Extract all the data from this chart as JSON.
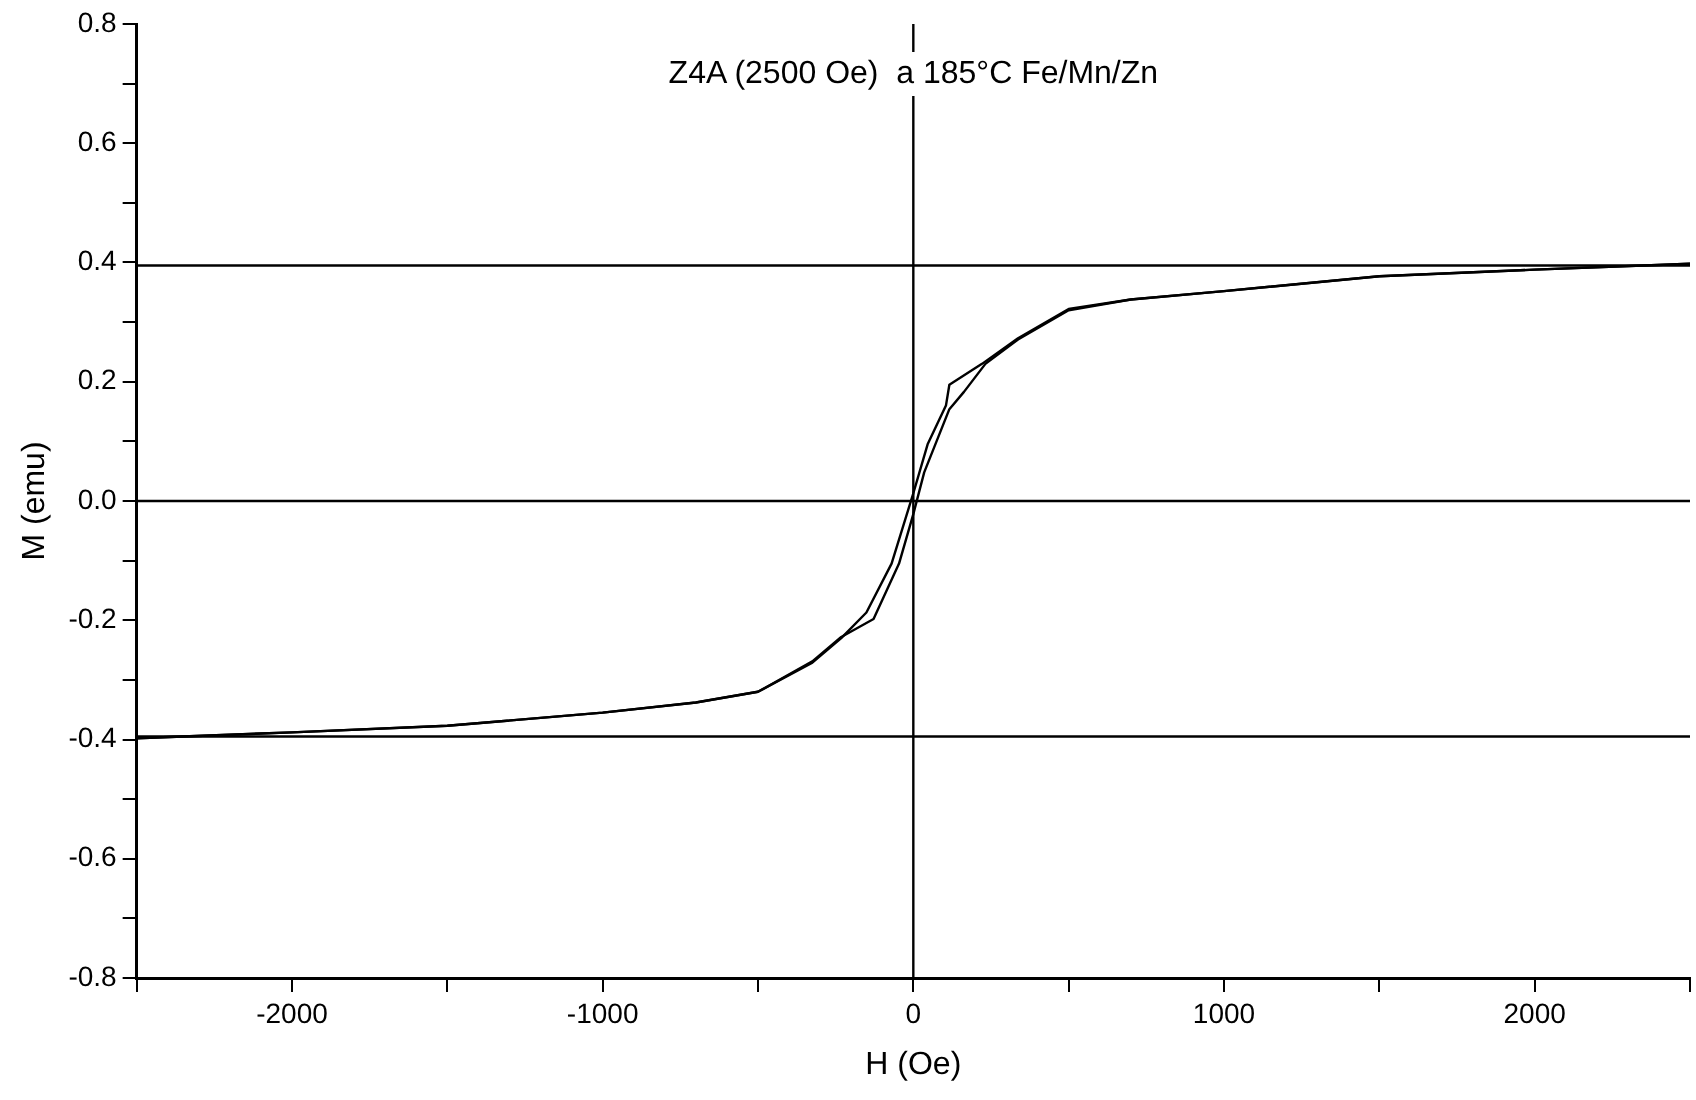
{
  "chart_data": {
    "type": "line",
    "title": "Z4A (2500 Oe)  a 185°C Fe/Mn/Zn",
    "xlabel": "H (Oe)",
    "ylabel": "M (emu)",
    "series": [
      {
        "color": "#000000",
        "x": [
          -2500,
          -2000,
          -1500,
          -1000,
          -700,
          -500,
          -325,
          -232,
          -128,
          -46,
          0,
          35,
          116,
          163,
          232,
          337,
          500,
          700,
          1000,
          1500,
          2000,
          2500
        ],
        "values": [
          -0.398,
          -0.388,
          -0.377,
          -0.355,
          -0.338,
          -0.32,
          -0.269,
          -0.228,
          -0.198,
          -0.105,
          -0.022,
          0.048,
          0.154,
          0.183,
          0.23,
          0.271,
          0.32,
          0.338,
          0.352,
          0.377,
          0.388,
          0.398
        ]
      },
      {
        "color": "#000000",
        "x": [
          2500,
          2000,
          1500,
          1000,
          700,
          500,
          337,
          221,
          116,
          105,
          46,
          0,
          -70,
          -151,
          -232,
          -325,
          -500,
          -700,
          -1000,
          -1500,
          -2000,
          -2500
        ],
        "values": [
          0.398,
          0.388,
          0.377,
          0.352,
          0.338,
          0.322,
          0.273,
          0.23,
          0.195,
          0.16,
          0.095,
          0.013,
          -0.105,
          -0.187,
          -0.23,
          -0.271,
          -0.32,
          -0.338,
          -0.355,
          -0.377,
          -0.388,
          -0.398
        ]
      }
    ],
    "xlim": [
      -2500,
      2500
    ],
    "xticks": [
      {
        "value": -2500,
        "label": null
      },
      -2000,
      {
        "value": -1500,
        "label": null
      },
      -1000,
      {
        "value": -500,
        "label": null
      },
      0,
      {
        "value": 500,
        "label": null
      },
      1000,
      {
        "value": 1500,
        "label": null
      },
      2000,
      {
        "value": 2500,
        "label": null
      }
    ],
    "ylim": [
      -0.8,
      0.8
    ],
    "yticks": [
      {
        "value": -0.8,
        "label": "-0.8"
      },
      {
        "value": -0.7,
        "label": null
      },
      {
        "value": -0.6,
        "label": "-0.6"
      },
      {
        "value": -0.5,
        "label": null
      },
      {
        "value": -0.4,
        "label": "-0.4"
      },
      {
        "value": -0.3,
        "label": null
      },
      {
        "value": -0.2,
        "label": "-0.2"
      },
      {
        "value": -0.1,
        "label": null
      },
      {
        "value": 0,
        "label": "0.0"
      },
      {
        "value": 0.1,
        "label": null
      },
      {
        "value": 0.2,
        "label": "0.2"
      },
      {
        "value": 0.3,
        "label": null
      },
      {
        "value": 0.4,
        "label": "0.4"
      },
      {
        "value": 0.5,
        "label": null
      },
      {
        "value": 0.6,
        "label": "0.6"
      },
      {
        "value": 0.7,
        "label": null
      },
      {
        "value": 0.8,
        "label": "0.8"
      }
    ],
    "ref_lines": [
      {
        "axis": "y",
        "value": 0.395,
        "color": "#000000"
      },
      {
        "axis": "y",
        "value": 0,
        "color": "#000000"
      },
      {
        "axis": "y",
        "value": -0.395,
        "color": "#000000"
      },
      {
        "axis": "x",
        "value": 0,
        "color": "#000000"
      }
    ],
    "grid": false,
    "legend": false,
    "marker": "none",
    "line_style": "solid"
  }
}
